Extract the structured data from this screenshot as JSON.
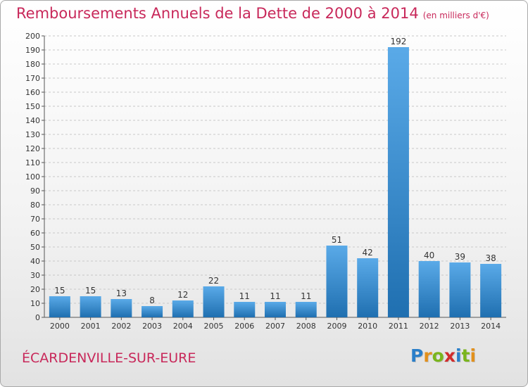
{
  "header": {
    "title": "Remboursements Annuels de la Dette de 2000 à 2014",
    "unit": "(en milliers d'€)"
  },
  "footer": {
    "place": "ÉCARDENVILLE-SUR-EURE",
    "logo": "Proxiti",
    "logo_colors": [
      "#2a7fc9",
      "#e2901c",
      "#7ab51d",
      "#d12b2b",
      "#2a7fc9",
      "#7ab51d",
      "#e2901c"
    ]
  },
  "colors": {
    "bar_light": "#5aaae8",
    "bar_dark": "#1f6fb0",
    "grid": "#c8c8c8",
    "axis": "#555555"
  },
  "chart_data": {
    "type": "bar",
    "title": "Remboursements Annuels de la Dette de 2000 à 2014",
    "categories": [
      "2000",
      "2001",
      "2002",
      "2003",
      "2004",
      "2005",
      "2006",
      "2007",
      "2008",
      "2009",
      "2010",
      "2011",
      "2012",
      "2013",
      "2014"
    ],
    "values": [
      15,
      15,
      13,
      8,
      12,
      22,
      11,
      11,
      11,
      51,
      42,
      192,
      40,
      39,
      38
    ],
    "ylim": [
      0,
      200
    ],
    "ytick_step": 10,
    "grid": "horizontal dashed",
    "xlabel": "",
    "ylabel": ""
  }
}
